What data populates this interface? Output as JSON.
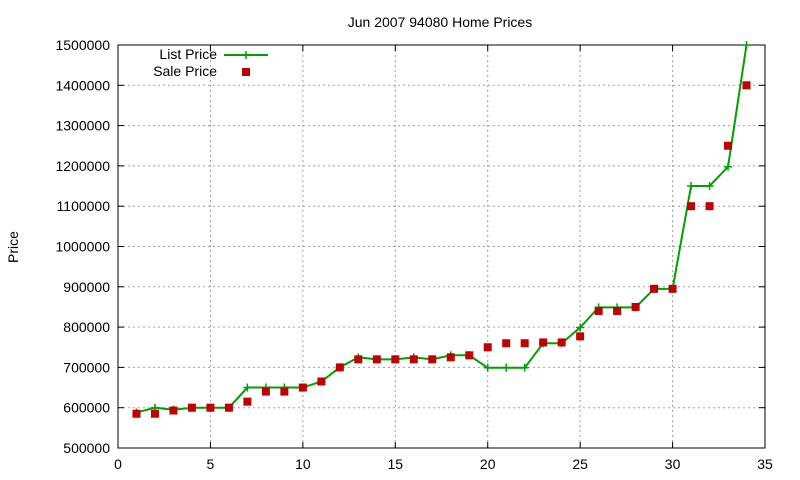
{
  "chart_data": {
    "type": "line",
    "title": "Jun 2007 94080 Home Prices",
    "xlabel": "",
    "ylabel": "Price",
    "xlim": [
      0,
      35
    ],
    "ylim": [
      500000,
      1500000
    ],
    "xticks": [
      0,
      5,
      10,
      15,
      20,
      25,
      30,
      35
    ],
    "yticks": [
      500000,
      600000,
      700000,
      800000,
      900000,
      1000000,
      1100000,
      1200000,
      1300000,
      1400000,
      1500000
    ],
    "grid": true,
    "legend_position": "top-left",
    "series": [
      {
        "name": "List Price",
        "style": "line-plus",
        "color": "#00a000",
        "x": [
          1,
          2,
          3,
          4,
          5,
          6,
          7,
          8,
          9,
          10,
          11,
          12,
          13,
          14,
          15,
          16,
          17,
          18,
          19,
          20,
          21,
          22,
          23,
          24,
          25,
          26,
          27,
          28,
          29,
          30,
          31,
          32,
          33,
          34
        ],
        "y": [
          588000,
          600000,
          595000,
          600000,
          600000,
          600000,
          650000,
          650000,
          650000,
          650000,
          665000,
          700000,
          725000,
          720000,
          720000,
          725000,
          720000,
          730000,
          730000,
          699000,
          699000,
          699000,
          760000,
          760000,
          799000,
          849000,
          849000,
          849000,
          895000,
          895000,
          1150000,
          1150000,
          1198000,
          1500000
        ]
      },
      {
        "name": "Sale Price",
        "style": "points-square",
        "color": "#c00000",
        "x": [
          1,
          2,
          3,
          4,
          5,
          6,
          7,
          8,
          9,
          10,
          11,
          12,
          13,
          14,
          15,
          16,
          17,
          18,
          19,
          20,
          21,
          22,
          23,
          24,
          25,
          26,
          27,
          28,
          29,
          30,
          31,
          32,
          33,
          34
        ],
        "y": [
          585000,
          585000,
          593000,
          600000,
          600000,
          600000,
          615000,
          640000,
          640000,
          650000,
          665000,
          700000,
          720000,
          720000,
          720000,
          720000,
          720000,
          725000,
          730000,
          750000,
          760000,
          760000,
          762000,
          762000,
          777000,
          840000,
          840000,
          850000,
          895000,
          895000,
          1100000,
          1100000,
          1250000,
          1400000
        ]
      }
    ]
  }
}
